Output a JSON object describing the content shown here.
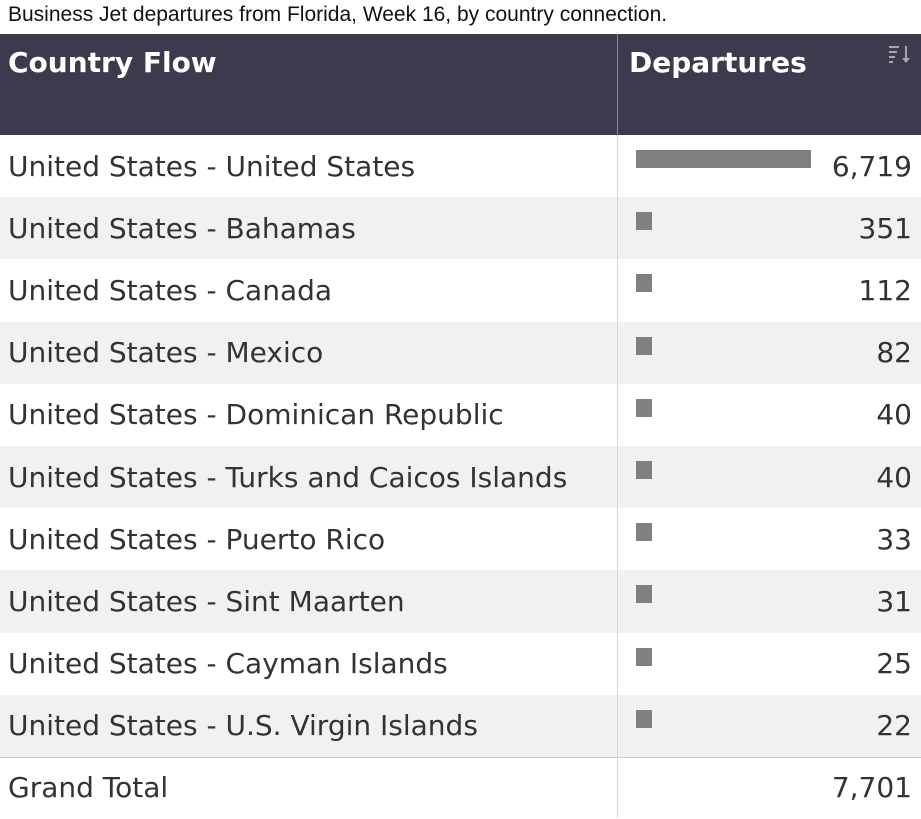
{
  "caption": "Business Jet departures from Florida, Week 16, by country connection.",
  "header": {
    "col1": "Country Flow",
    "col2": "Departures",
    "sort_icon": "sort-descending-icon"
  },
  "colors": {
    "header_bg": "#3d3a4e",
    "bar": "#808080",
    "row_alt": "#f1f1f1"
  },
  "chart_data": {
    "type": "table",
    "columns": [
      "Country Flow",
      "Departures"
    ],
    "rows": [
      {
        "label": "United States - United States",
        "value": 6719,
        "display": "6,719"
      },
      {
        "label": "United States - Bahamas",
        "value": 351,
        "display": "351"
      },
      {
        "label": "United States - Canada",
        "value": 112,
        "display": "112"
      },
      {
        "label": "United States - Mexico",
        "value": 82,
        "display": "82"
      },
      {
        "label": "United States - Dominican Republic",
        "value": 40,
        "display": "40"
      },
      {
        "label": "United States - Turks and Caicos Islands",
        "value": 40,
        "display": "40"
      },
      {
        "label": "United States - Puerto Rico",
        "value": 33,
        "display": "33"
      },
      {
        "label": "United States - Sint Maarten",
        "value": 31,
        "display": "31"
      },
      {
        "label": "United States - Cayman Islands",
        "value": 25,
        "display": "25"
      },
      {
        "label": "United States - U.S. Virgin Islands",
        "value": 22,
        "display": "22"
      }
    ],
    "total": {
      "label": "Grand Total",
      "value": 7701,
      "display": "7,701"
    }
  }
}
